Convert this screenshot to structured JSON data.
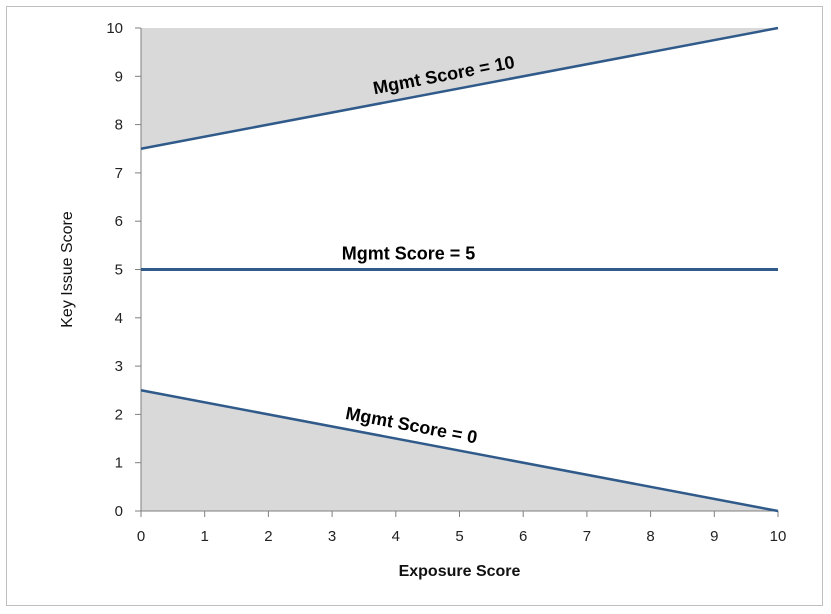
{
  "chart_data": {
    "type": "line",
    "xlabel": "Exposure Score",
    "ylabel": "Key Issue Score",
    "xlim": [
      0,
      10
    ],
    "ylim": [
      0,
      10
    ],
    "x_ticks": [
      0,
      1,
      2,
      3,
      4,
      5,
      6,
      7,
      8,
      9,
      10
    ],
    "y_ticks": [
      0,
      1,
      2,
      3,
      4,
      5,
      6,
      7,
      8,
      9,
      10
    ],
    "grid": false,
    "series": [
      {
        "label": "Mgmt Score = 10",
        "x": [
          0,
          10
        ],
        "y": [
          7.5,
          10
        ],
        "shade": "above"
      },
      {
        "label": "Mgmt Score = 5",
        "x": [
          0,
          10
        ],
        "y": [
          5,
          5
        ],
        "shade": "none"
      },
      {
        "label": "Mgmt Score = 0",
        "x": [
          0,
          10
        ],
        "y": [
          2.5,
          0
        ],
        "shade": "below"
      }
    ],
    "colors": {
      "line": "#2f5a8a",
      "shade": "#d9d9d9",
      "axis": "#7f7f7f"
    }
  }
}
